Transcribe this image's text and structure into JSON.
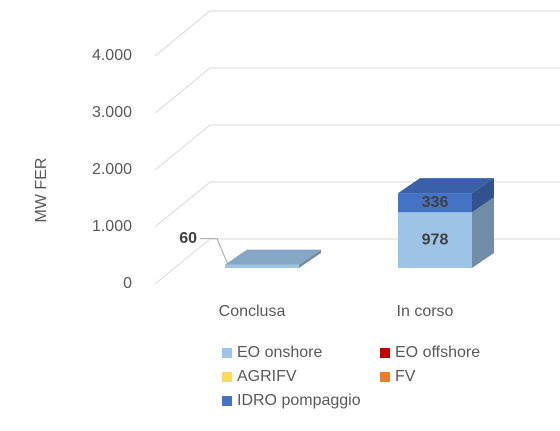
{
  "chart_data": {
    "type": "bar3d_stacked",
    "y_label": "MW FER",
    "categories": [
      "Conclusa",
      "In corso"
    ],
    "series": [
      {
        "name": "EO onshore",
        "color": "#9dc3e6",
        "values": [
          60,
          978
        ]
      },
      {
        "name": "EO offshore",
        "color": "#c00000",
        "values": [
          null,
          null
        ]
      },
      {
        "name": "AGRIFV",
        "color": "#ffd966",
        "values": [
          null,
          null
        ]
      },
      {
        "name": "FV",
        "color": "#ed7d31",
        "values": [
          null,
          null
        ]
      },
      {
        "name": "IDRO pompaggio",
        "color": "#4472c4",
        "values": [
          null,
          336
        ]
      }
    ],
    "ylim": [
      0,
      4000
    ],
    "yticks": [
      0,
      {
        "value": 1000,
        "label": "1.000"
      },
      {
        "value": 2000,
        "label": "2.000"
      },
      {
        "value": 3000,
        "label": "3.000"
      },
      {
        "value": 4000,
        "label": "4.000"
      }
    ],
    "grid": true
  }
}
